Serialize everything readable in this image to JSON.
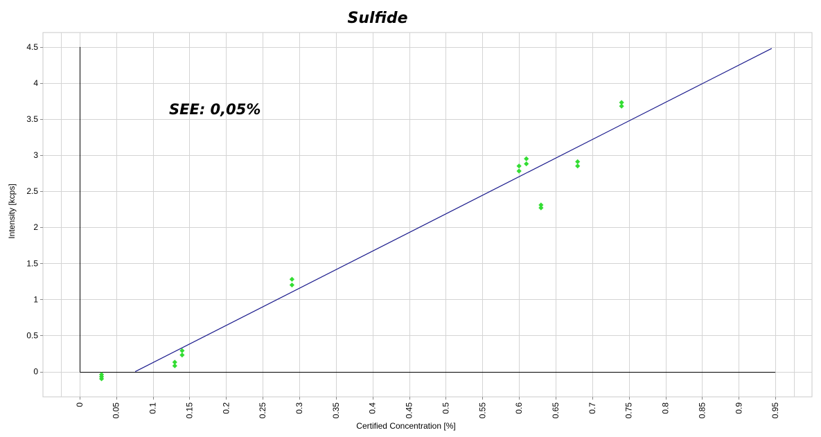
{
  "chart_data": {
    "type": "scatter",
    "title": "Sulfide",
    "annotation": "SEE: 0,05%",
    "xlabel": "Certified Concentration [%]",
    "ylabel": "Intensity [kcps]",
    "xlim": [
      -0.05,
      1.0
    ],
    "ylim": [
      -0.35,
      4.7
    ],
    "x_ticks": [
      0,
      0.05,
      0.1,
      0.15,
      0.2,
      0.25,
      0.3,
      0.35,
      0.4,
      0.45,
      0.5,
      0.55,
      0.6,
      0.65,
      0.7,
      0.75,
      0.8,
      0.85,
      0.9,
      0.95
    ],
    "y_ticks": [
      0,
      0.5,
      1,
      1.5,
      2,
      2.5,
      3,
      3.5,
      4,
      4.5
    ],
    "grid": true,
    "point_color": "#33dd33",
    "line_color": "#1a1a8c",
    "points": [
      {
        "x": 0.03,
        "y": -0.04
      },
      {
        "x": 0.03,
        "y": -0.07
      },
      {
        "x": 0.03,
        "y": -0.1
      },
      {
        "x": 0.13,
        "y": 0.13
      },
      {
        "x": 0.13,
        "y": 0.08
      },
      {
        "x": 0.14,
        "y": 0.29
      },
      {
        "x": 0.14,
        "y": 0.23
      },
      {
        "x": 0.29,
        "y": 1.28
      },
      {
        "x": 0.29,
        "y": 1.2
      },
      {
        "x": 0.6,
        "y": 2.85
      },
      {
        "x": 0.6,
        "y": 2.78
      },
      {
        "x": 0.61,
        "y": 2.95
      },
      {
        "x": 0.61,
        "y": 2.88
      },
      {
        "x": 0.63,
        "y": 2.31
      },
      {
        "x": 0.63,
        "y": 2.27
      },
      {
        "x": 0.68,
        "y": 2.91
      },
      {
        "x": 0.68,
        "y": 2.85
      },
      {
        "x": 0.74,
        "y": 3.73
      },
      {
        "x": 0.74,
        "y": 3.68
      }
    ],
    "fit_line": [
      {
        "x": 0.076,
        "y": 0
      },
      {
        "x": 0.945,
        "y": 4.48
      }
    ]
  }
}
